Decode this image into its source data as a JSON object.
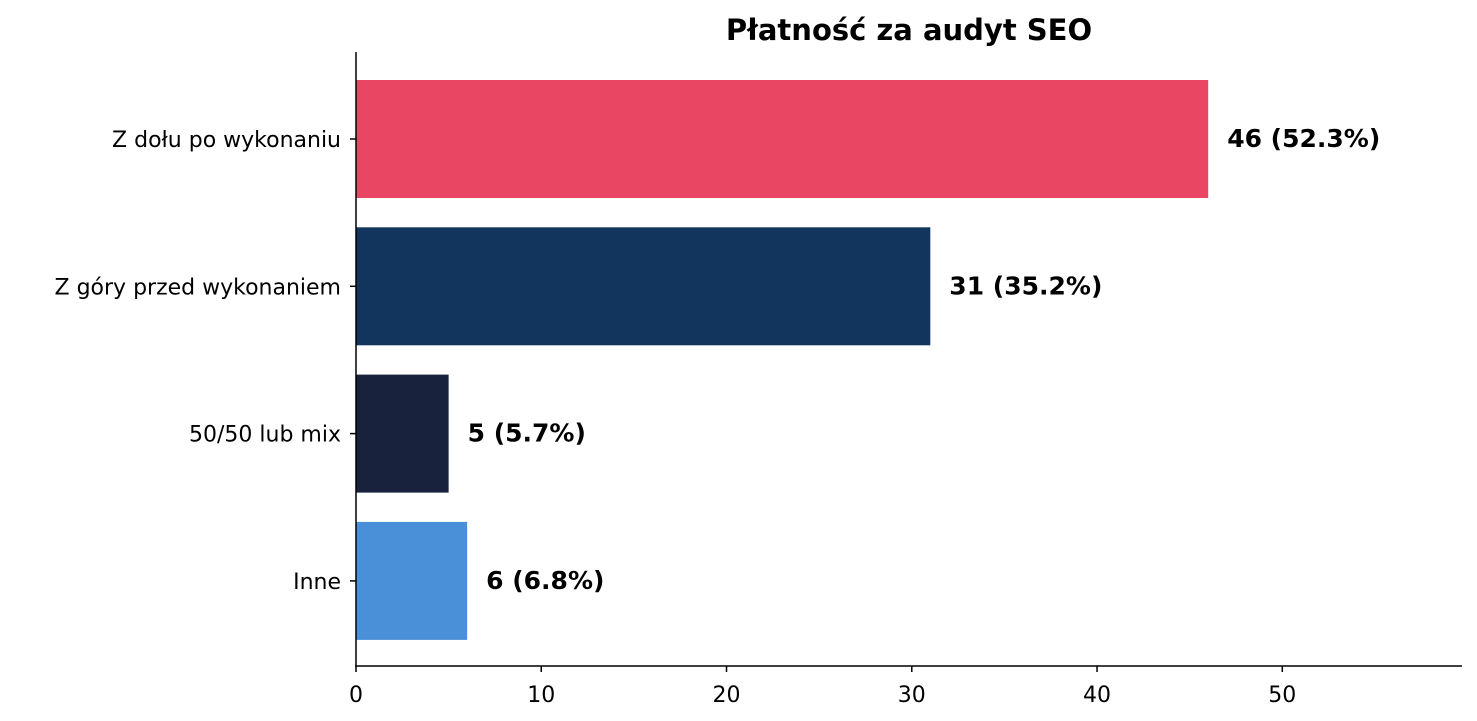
{
  "chart_data": {
    "type": "bar",
    "orientation": "horizontal",
    "title": "Płatność za audyt SEO",
    "xlabel": "",
    "ylabel": "",
    "categories": [
      "Z dołu po wykonaniu",
      "Z góry przed wykonaniem",
      "50/50 lub mix",
      "Inne"
    ],
    "values": [
      46,
      31,
      5,
      6
    ],
    "data_labels": [
      "46 (52.3%)",
      "31 (35.2%)",
      "5 (5.7%)",
      "6 (6.8%)"
    ],
    "colors": [
      "#e84663",
      "#12355e",
      "#18223d",
      "#4a90d9"
    ],
    "xlim": [
      0,
      59.7
    ],
    "xticks": [
      0,
      10,
      20,
      30,
      40,
      50
    ],
    "grid": false,
    "legend": "none"
  }
}
